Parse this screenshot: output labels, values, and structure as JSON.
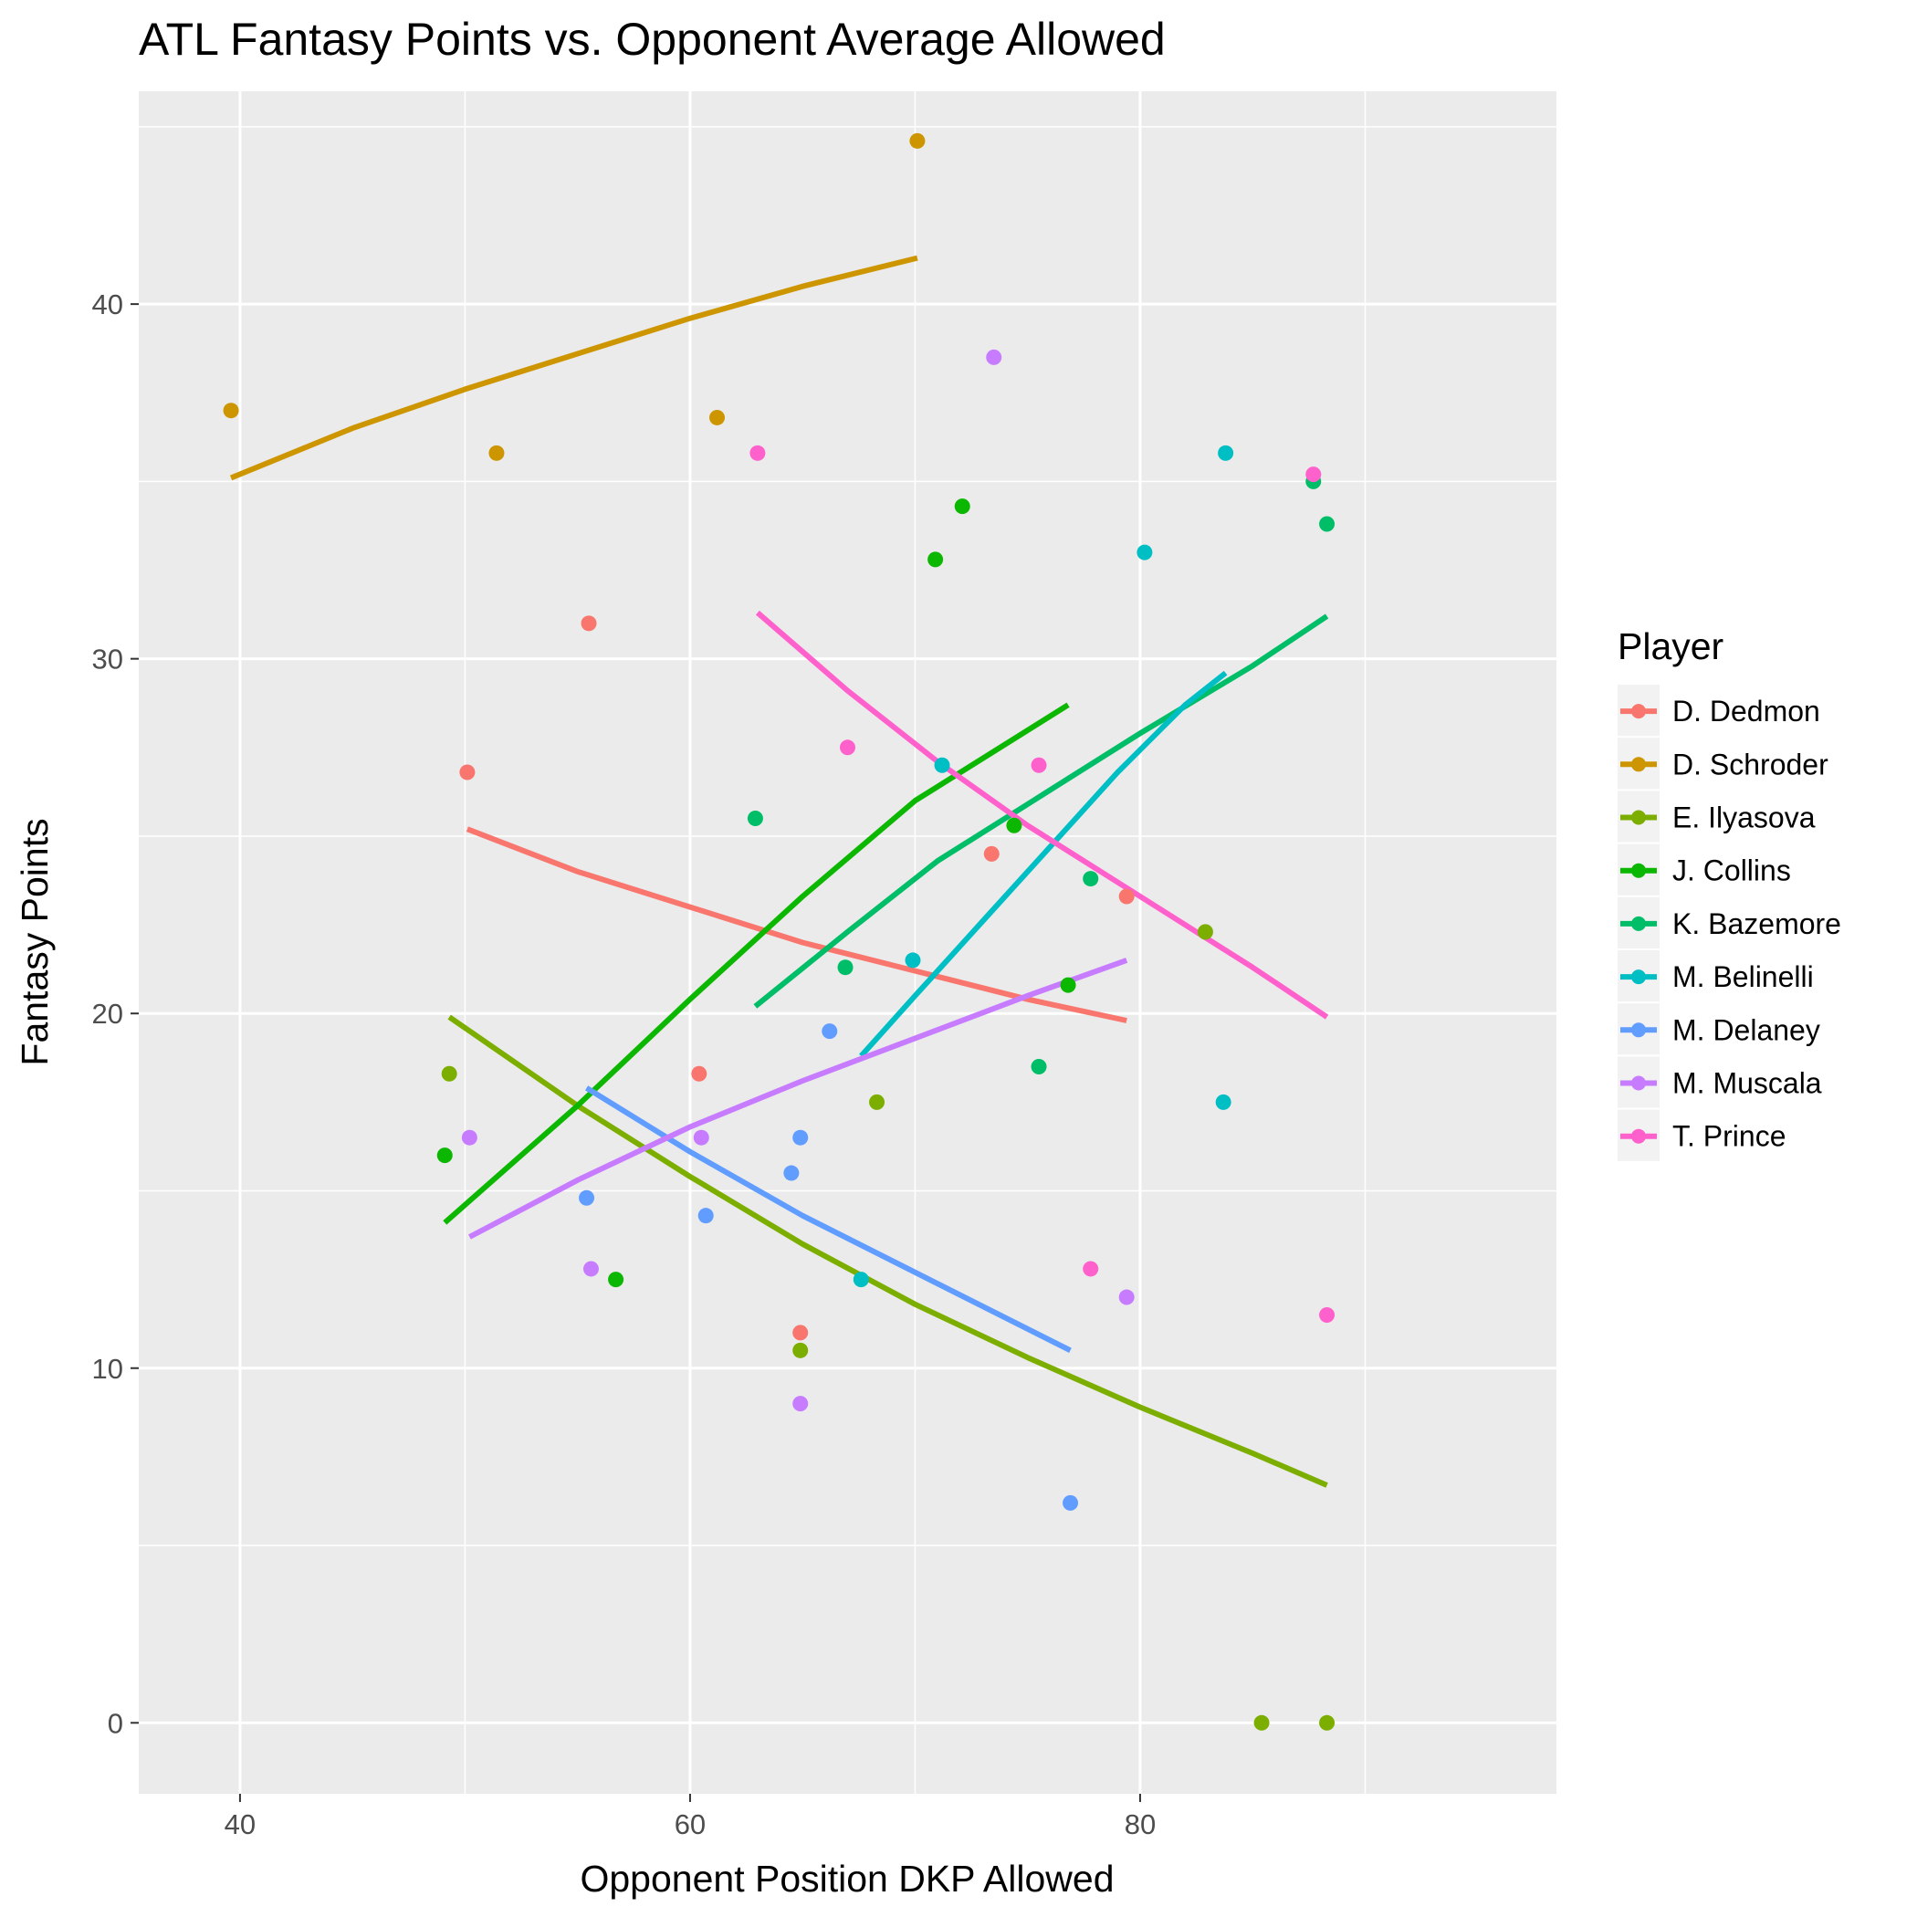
{
  "chart_data": {
    "type": "scatter",
    "title": "ATL Fantasy Points vs. Opponent Average Allowed",
    "xlabel": "Opponent Position DKP Allowed",
    "ylabel": "Fantasy Points",
    "xlim": [
      35.5,
      98.5
    ],
    "ylim": [
      -2,
      46
    ],
    "x_ticks": [
      40,
      60,
      80
    ],
    "y_ticks": [
      0,
      10,
      20,
      30,
      40
    ],
    "grid": true,
    "legend": {
      "title": "Player",
      "position": "right"
    },
    "series": [
      {
        "name": "D. Dedmon",
        "color": "#F8766D",
        "points": [
          [
            50.1,
            26.8
          ],
          [
            55.5,
            31.0
          ],
          [
            60.4,
            18.3
          ],
          [
            64.9,
            11.0
          ],
          [
            73.4,
            24.5
          ],
          [
            79.4,
            23.3
          ]
        ],
        "trend": [
          [
            50.1,
            25.2
          ],
          [
            55,
            24.0
          ],
          [
            60,
            23.0
          ],
          [
            65,
            22.0
          ],
          [
            70,
            21.2
          ],
          [
            75,
            20.4
          ],
          [
            79.4,
            19.8
          ]
        ]
      },
      {
        "name": "D. Schroder",
        "color": "#CD9600",
        "points": [
          [
            39.6,
            37.0
          ],
          [
            51.4,
            35.8
          ],
          [
            61.2,
            36.8
          ],
          [
            70.1,
            44.6
          ]
        ],
        "trend": [
          [
            39.6,
            35.1
          ],
          [
            45,
            36.5
          ],
          [
            50,
            37.6
          ],
          [
            55,
            38.6
          ],
          [
            60,
            39.6
          ],
          [
            65,
            40.5
          ],
          [
            70.1,
            41.3
          ]
        ]
      },
      {
        "name": "E. Ilyasova",
        "color": "#7CAE00",
        "points": [
          [
            49.3,
            18.3
          ],
          [
            64.9,
            10.5
          ],
          [
            68.3,
            17.5
          ],
          [
            82.9,
            22.3
          ],
          [
            85.4,
            0.0
          ],
          [
            88.3,
            0.0
          ]
        ],
        "trend": [
          [
            49.3,
            19.9
          ],
          [
            55,
            17.4
          ],
          [
            60,
            15.4
          ],
          [
            65,
            13.5
          ],
          [
            70,
            11.8
          ],
          [
            75,
            10.3
          ],
          [
            80,
            8.9
          ],
          [
            85,
            7.6
          ],
          [
            88.3,
            6.7
          ]
        ]
      },
      {
        "name": "J. Collins",
        "color": "#0CB702",
        "points": [
          [
            49.1,
            16.0
          ],
          [
            56.7,
            12.5
          ],
          [
            70.9,
            32.8
          ],
          [
            72.1,
            34.3
          ],
          [
            74.4,
            25.3
          ],
          [
            76.8,
            20.8
          ]
        ],
        "trend": [
          [
            49.1,
            14.1
          ],
          [
            55,
            17.4
          ],
          [
            60,
            20.4
          ],
          [
            65,
            23.3
          ],
          [
            70,
            26.0
          ],
          [
            76.8,
            28.7
          ]
        ]
      },
      {
        "name": "K. Bazemore",
        "color": "#00BE67",
        "points": [
          [
            62.9,
            25.5
          ],
          [
            66.9,
            21.3
          ],
          [
            75.5,
            18.5
          ],
          [
            77.8,
            23.8
          ],
          [
            87.7,
            35.0
          ],
          [
            88.3,
            33.8
          ]
        ],
        "trend": [
          [
            62.9,
            20.2
          ],
          [
            67,
            22.3
          ],
          [
            71,
            24.3
          ],
          [
            75,
            25.9
          ],
          [
            80,
            27.9
          ],
          [
            85,
            29.8
          ],
          [
            88.3,
            31.2
          ]
        ]
      },
      {
        "name": "M. Belinelli",
        "color": "#00BFC4",
        "points": [
          [
            67.6,
            12.5
          ],
          [
            69.9,
            21.5
          ],
          [
            71.2,
            27.0
          ],
          [
            80.2,
            33.0
          ],
          [
            83.7,
            17.5
          ],
          [
            83.8,
            35.8
          ]
        ],
        "trend": [
          [
            67.6,
            18.8
          ],
          [
            70,
            20.5
          ],
          [
            73,
            22.6
          ],
          [
            76,
            24.7
          ],
          [
            79,
            26.8
          ],
          [
            82,
            28.7
          ],
          [
            83.8,
            29.6
          ]
        ]
      },
      {
        "name": "M. Delaney",
        "color": "#619CFF",
        "points": [
          [
            55.4,
            14.8
          ],
          [
            60.7,
            14.3
          ],
          [
            64.5,
            15.5
          ],
          [
            64.9,
            16.5
          ],
          [
            66.2,
            19.5
          ],
          [
            76.9,
            6.2
          ]
        ],
        "trend": [
          [
            55.4,
            17.9
          ],
          [
            60,
            16.1
          ],
          [
            65,
            14.3
          ],
          [
            70,
            12.7
          ],
          [
            76.9,
            10.5
          ]
        ]
      },
      {
        "name": "M. Muscala",
        "color": "#C77CFF",
        "points": [
          [
            50.2,
            16.5
          ],
          [
            55.6,
            12.8
          ],
          [
            60.5,
            16.5
          ],
          [
            64.9,
            9.0
          ],
          [
            73.5,
            38.5
          ],
          [
            79.4,
            12.0
          ]
        ],
        "trend": [
          [
            50.2,
            13.7
          ],
          [
            55,
            15.3
          ],
          [
            60,
            16.8
          ],
          [
            65,
            18.1
          ],
          [
            70,
            19.3
          ],
          [
            75,
            20.5
          ],
          [
            79.4,
            21.5
          ]
        ]
      },
      {
        "name": "T. Prince",
        "color": "#FF61CC",
        "points": [
          [
            63.0,
            35.8
          ],
          [
            67.0,
            27.5
          ],
          [
            75.5,
            27.0
          ],
          [
            77.8,
            12.8
          ],
          [
            87.7,
            35.2
          ],
          [
            88.3,
            11.5
          ]
        ],
        "trend": [
          [
            63.0,
            31.3
          ],
          [
            67,
            29.1
          ],
          [
            71,
            27.1
          ],
          [
            75,
            25.3
          ],
          [
            80,
            23.3
          ],
          [
            85,
            21.3
          ],
          [
            88.3,
            19.9
          ]
        ]
      }
    ]
  }
}
